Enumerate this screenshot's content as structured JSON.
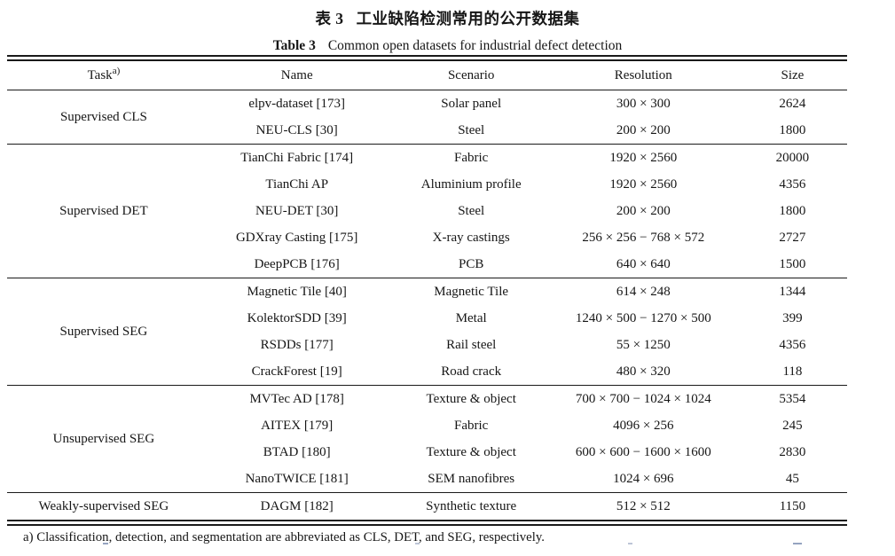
{
  "page": {
    "title_zh_label": "表 3",
    "title_zh_text": "工业缺陷检测常用的公开数据集",
    "title_en_label": "Table 3",
    "title_en_text": "Common open datasets for industrial defect detection"
  },
  "table": {
    "header": {
      "task": "Task",
      "task_sup": "a)",
      "name": "Name",
      "scenario": "Scenario",
      "resolution": "Resolution",
      "size": "Size"
    },
    "groups": [
      {
        "task": "Supervised CLS",
        "rows": [
          {
            "name": "elpv-dataset [173]",
            "scenario": "Solar panel",
            "resolution": "300 × 300",
            "size": "2624"
          },
          {
            "name": "NEU-CLS [30]",
            "scenario": "Steel",
            "resolution": "200 × 200",
            "size": "1800"
          }
        ]
      },
      {
        "task": "Supervised DET",
        "rows": [
          {
            "name": "TianChi Fabric [174]",
            "scenario": "Fabric",
            "resolution": "1920 × 2560",
            "size": "20000"
          },
          {
            "name": "TianChi AP",
            "scenario": "Aluminium profile",
            "resolution": "1920 × 2560",
            "size": "4356"
          },
          {
            "name": "NEU-DET [30]",
            "scenario": "Steel",
            "resolution": "200 × 200",
            "size": "1800"
          },
          {
            "name": "GDXray Casting [175]",
            "scenario": "X-ray castings",
            "resolution": "256 × 256 − 768 × 572",
            "size": "2727"
          },
          {
            "name": "DeepPCB [176]",
            "scenario": "PCB",
            "resolution": "640 × 640",
            "size": "1500"
          }
        ]
      },
      {
        "task": "Supervised SEG",
        "rows": [
          {
            "name": "Magnetic Tile [40]",
            "scenario": "Magnetic Tile",
            "resolution": "614 × 248",
            "size": "1344"
          },
          {
            "name": "KolektorSDD [39]",
            "scenario": "Metal",
            "resolution": "1240 × 500 − 1270 × 500",
            "size": "399"
          },
          {
            "name": "RSDDs [177]",
            "scenario": "Rail steel",
            "resolution": "55 × 1250",
            "size": "4356"
          },
          {
            "name": "CrackForest [19]",
            "scenario": "Road crack",
            "resolution": "480 × 320",
            "size": "118"
          }
        ]
      },
      {
        "task": "Unsupervised SEG",
        "rows": [
          {
            "name": "MVTec AD [178]",
            "scenario": "Texture & object",
            "resolution": "700 × 700 − 1024 × 1024",
            "size": "5354"
          },
          {
            "name": "AITEX [179]",
            "scenario": "Fabric",
            "resolution": "4096 × 256",
            "size": "245"
          },
          {
            "name": "BTAD [180]",
            "scenario": "Texture & object",
            "resolution": "600 × 600 − 1600 × 1600",
            "size": "2830"
          },
          {
            "name": "NanoTWICE [181]",
            "scenario": "SEM nanofibres",
            "resolution": "1024 × 696",
            "size": "45"
          }
        ]
      },
      {
        "task": "Weakly-supervised SEG",
        "rows": [
          {
            "name": "DAGM [182]",
            "scenario": "Synthetic texture",
            "resolution": "512 × 512",
            "size": "1150"
          }
        ]
      }
    ],
    "footnote": "a) Classification, detection, and segmentation are abbreviated as CLS, DET, and SEG, respectively."
  }
}
